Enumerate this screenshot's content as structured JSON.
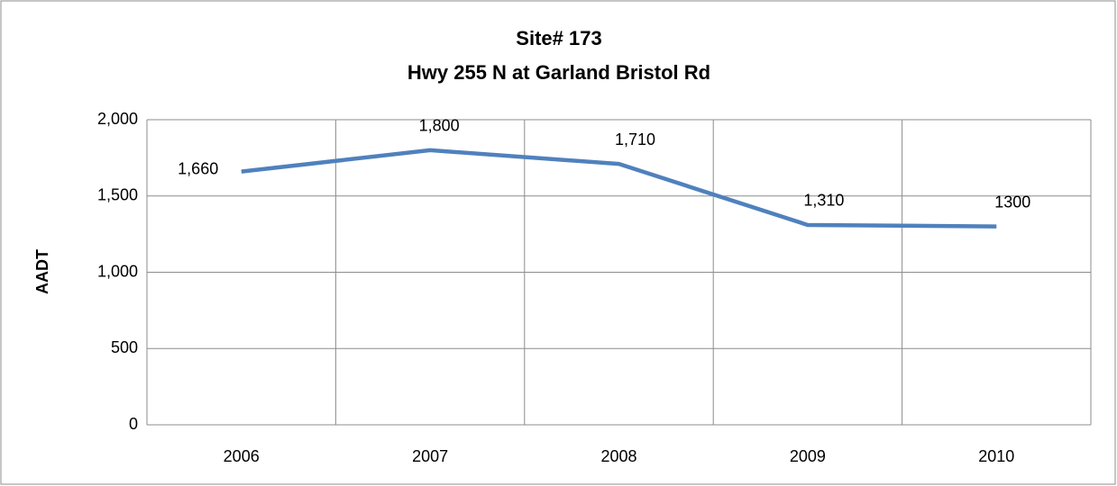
{
  "chart_data": {
    "type": "line",
    "title": "Site# 173",
    "subtitle": "Hwy 255 N at Garland Bristol Rd",
    "y_label": "AADT",
    "categories": [
      "2006",
      "2007",
      "2008",
      "2009",
      "2010"
    ],
    "values": [
      1660,
      1800,
      1710,
      1310,
      1300
    ],
    "value_labels": [
      "1,660",
      "1,800",
      "1,710",
      "1,310",
      "1300"
    ],
    "color": "#4f81bd",
    "ylim": [
      0,
      2000
    ],
    "yticks": [
      0,
      500,
      {
        "value": 1000,
        "label": "1,000"
      },
      {
        "value": 1500,
        "label": "1,500"
      },
      {
        "value": 2000,
        "label": "2,000"
      }
    ],
    "grid": true
  }
}
